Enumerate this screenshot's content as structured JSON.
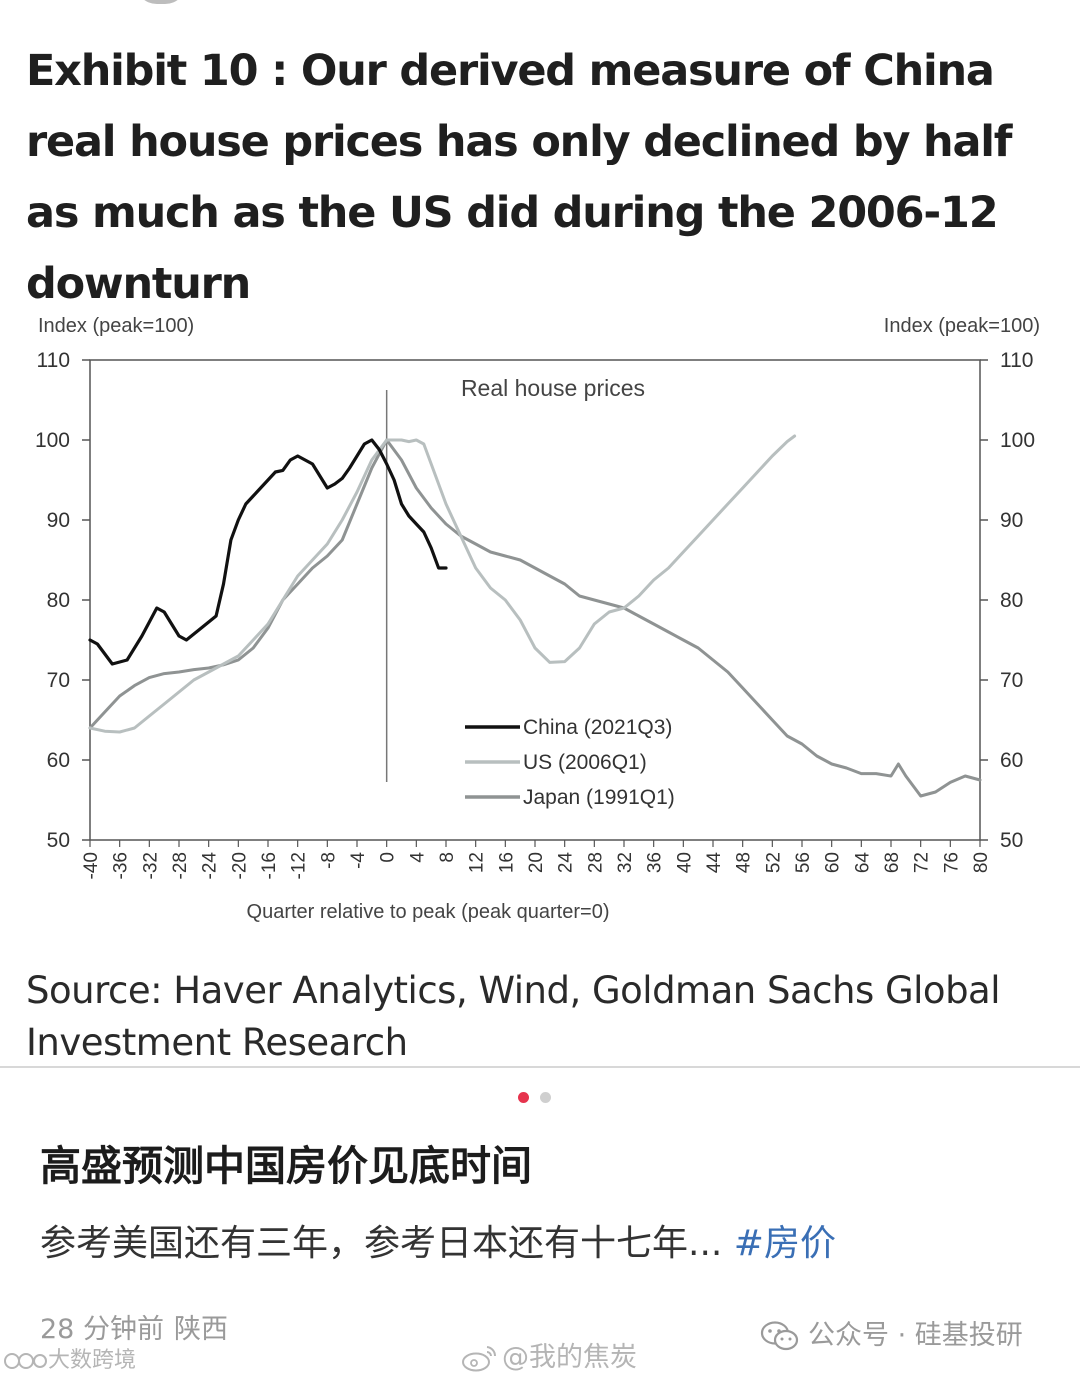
{
  "exhibit_title": "Exhibit 10 : Our derived measure of China real house prices has only declined by half as much as the US did during the 2006-12 downturn",
  "source": "Source: Haver Analytics, Wind, Goldman Sachs Global Investment Research",
  "chart_data": {
    "type": "line",
    "title": "Real house prices",
    "ylabel_left": "Index (peak=100)",
    "ylabel_right": "Index (peak=100)",
    "xlabel": "Quarter relative to peak (peak quarter=0)",
    "xlim": [
      -40,
      80
    ],
    "ylim": [
      50,
      110
    ],
    "yticks": [
      50,
      60,
      70,
      80,
      90,
      100,
      110
    ],
    "xticks": [
      -40,
      -36,
      -32,
      -28,
      -24,
      -20,
      -16,
      -12,
      -8,
      -4,
      0,
      4,
      8,
      12,
      16,
      20,
      24,
      28,
      32,
      36,
      40,
      44,
      48,
      52,
      56,
      60,
      64,
      68,
      72,
      76,
      80
    ],
    "xtick_labels": [
      "-40",
      "-36",
      "-32",
      "-28",
      "-24",
      "-20",
      "-16",
      "-12",
      "-8",
      "-4",
      "0",
      "4",
      "8",
      "12",
      "16",
      "20",
      "24",
      "28",
      "32",
      "36",
      "40",
      "44",
      "48",
      "52",
      "56",
      "60",
      "64",
      "68",
      "72",
      "76",
      "80"
    ],
    "legend_position": "bottom-center",
    "grid": false,
    "peak_marker_x": 0,
    "series": [
      {
        "name": "China (2021Q3)",
        "color": "#111111",
        "x": [
          -40,
          -39,
          -37,
          -35,
          -33,
          -31,
          -30,
          -29,
          -28,
          -27,
          -25,
          -23,
          -22,
          -21,
          -20,
          -19,
          -18,
          -17,
          -16,
          -15,
          -14,
          -13,
          -12,
          -11,
          -10,
          -9,
          -8,
          -7,
          -6,
          -5,
          -4,
          -3,
          -2,
          -1,
          0,
          1,
          2,
          3,
          4,
          5,
          6,
          7,
          8
        ],
        "y": [
          75,
          74.5,
          72,
          72.5,
          75.5,
          79,
          78.5,
          77,
          75.5,
          75,
          76.5,
          78,
          82,
          87.5,
          90,
          92,
          93,
          94,
          95,
          96,
          96.2,
          97.5,
          98,
          97.5,
          97,
          95.5,
          94,
          94.5,
          95.2,
          96.5,
          98,
          99.5,
          100,
          98.8,
          97,
          95,
          92,
          90.5,
          89.5,
          88.5,
          86.5,
          84,
          84
        ]
      },
      {
        "name": "US (2006Q1)",
        "color": "#b8bfbf",
        "x": [
          -40,
          -38,
          -36,
          -34,
          -32,
          -30,
          -28,
          -26,
          -24,
          -22,
          -20,
          -18,
          -16,
          -14,
          -12,
          -10,
          -8,
          -6,
          -4,
          -2,
          0,
          2,
          3,
          4,
          5,
          6,
          8,
          10,
          12,
          14,
          16,
          18,
          20,
          22,
          24,
          26,
          28,
          30,
          32,
          34,
          36,
          38,
          40,
          42,
          44,
          46,
          48,
          50,
          52,
          54,
          55
        ],
        "y": [
          64,
          63.6,
          63.5,
          64,
          65.5,
          67,
          68.5,
          70,
          71,
          72,
          73,
          75,
          77,
          80,
          83,
          85,
          87,
          90,
          93.5,
          97.5,
          100,
          100,
          99.8,
          100,
          99.5,
          97,
          92,
          88,
          84,
          81.5,
          80,
          77.5,
          74,
          72.2,
          72.3,
          74,
          77,
          78.5,
          79,
          80.5,
          82.5,
          84,
          86,
          88,
          90,
          92,
          94,
          96,
          98,
          99.8,
          100.5
        ]
      },
      {
        "name": "Japan (1991Q1)",
        "color": "#8f9393",
        "x": [
          -40,
          -38,
          -36,
          -34,
          -32,
          -30,
          -28,
          -26,
          -24,
          -22,
          -20,
          -18,
          -16,
          -14,
          -12,
          -10,
          -8,
          -6,
          -4,
          -2,
          0,
          2,
          4,
          6,
          8,
          10,
          12,
          14,
          16,
          18,
          20,
          22,
          24,
          26,
          28,
          30,
          32,
          34,
          36,
          38,
          40,
          42,
          44,
          46,
          48,
          50,
          52,
          54,
          56,
          58,
          60,
          62,
          64,
          66,
          68,
          69,
          70,
          72,
          74,
          76,
          78,
          80
        ],
        "y": [
          64,
          66,
          68,
          69.3,
          70.3,
          70.8,
          71,
          71.3,
          71.5,
          71.9,
          72.5,
          74,
          76.5,
          80,
          82,
          84,
          85.5,
          87.5,
          92,
          96.5,
          100,
          97.5,
          94,
          91.5,
          89.5,
          88,
          87,
          86,
          85.5,
          85,
          84,
          83,
          82,
          80.5,
          80,
          79.5,
          79,
          78,
          77,
          76,
          75,
          74,
          72.5,
          71,
          69,
          67,
          65,
          63,
          62,
          60.5,
          59.5,
          59,
          58.3,
          58.3,
          58,
          59.5,
          58,
          55.5,
          56,
          57.2,
          58,
          57.5
        ]
      }
    ]
  },
  "post": {
    "title": "高盛预测中国房价见底时间",
    "body": "参考美国还有三年，参考日本还有十七年...",
    "hashtag": "#房价",
    "time": "28 分钟前",
    "region": "陕西"
  },
  "watermarks": {
    "wechat": "公众号 · 硅基投研",
    "left": "大数跨境",
    "weibo": "@我的焦炭"
  }
}
